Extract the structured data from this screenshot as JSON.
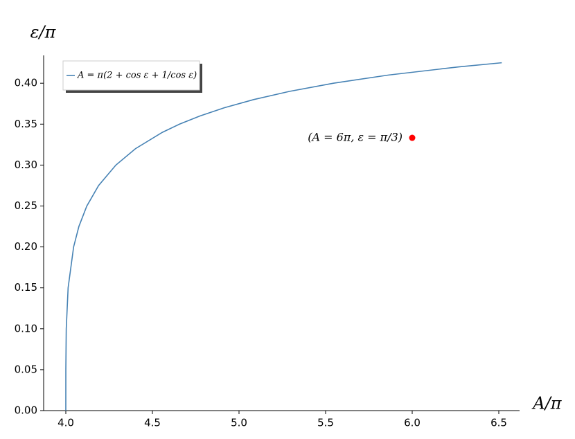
{
  "chart_data": {
    "type": "line",
    "x_label": "A/π",
    "y_label": "ε/π",
    "series": [
      {
        "name": "A = π(2 + cos ε + 1/cos ε)",
        "color": "#4682b4",
        "x": [
          4.0,
          4.0,
          4.000153,
          4.002519,
          4.013333,
          4.045085,
          4.075493,
          4.12132,
          4.189211,
          4.289087,
          4.4021,
          4.557505,
          4.656679,
          4.774415,
          4.9151,
          5.084594,
          5.290872,
          5.545085,
          5.863336,
          6.26976,
          6.51711
        ],
        "values": [
          0.0,
          0.01,
          0.05,
          0.1,
          0.15,
          0.2,
          0.225,
          0.25,
          0.275,
          0.3,
          0.32,
          0.34,
          0.35,
          0.36,
          0.37,
          0.38,
          0.39,
          0.4,
          0.41,
          0.42,
          0.425
        ]
      }
    ],
    "points": [
      {
        "label": "(A = 6π, ε = π/3)",
        "x": 6,
        "y": 0.3333,
        "color": "#ff0000"
      }
    ],
    "xlim": [
      3.872,
      6.62
    ],
    "ylim": [
      0,
      0.434
    ],
    "xticks": [
      {
        "value": 4,
        "label": "4.0"
      },
      {
        "value": 4.5,
        "label": "4.5"
      },
      {
        "value": 5,
        "label": "5.0"
      },
      {
        "value": 5.5,
        "label": "5.5"
      },
      {
        "value": 6,
        "label": "6.0"
      },
      {
        "value": 6.5,
        "label": "6.5"
      }
    ],
    "yticks": [
      {
        "value": 0,
        "label": "0.00"
      },
      {
        "value": 0.05,
        "label": "0.05"
      },
      {
        "value": 0.1,
        "label": "0.10"
      },
      {
        "value": 0.15,
        "label": "0.15"
      },
      {
        "value": 0.2,
        "label": "0.20"
      },
      {
        "value": 0.25,
        "label": "0.25"
      },
      {
        "value": 0.3,
        "label": "0.30"
      },
      {
        "value": 0.35,
        "label": "0.35"
      },
      {
        "value": 0.4,
        "label": "0.40"
      }
    ],
    "legend": "upper left"
  }
}
